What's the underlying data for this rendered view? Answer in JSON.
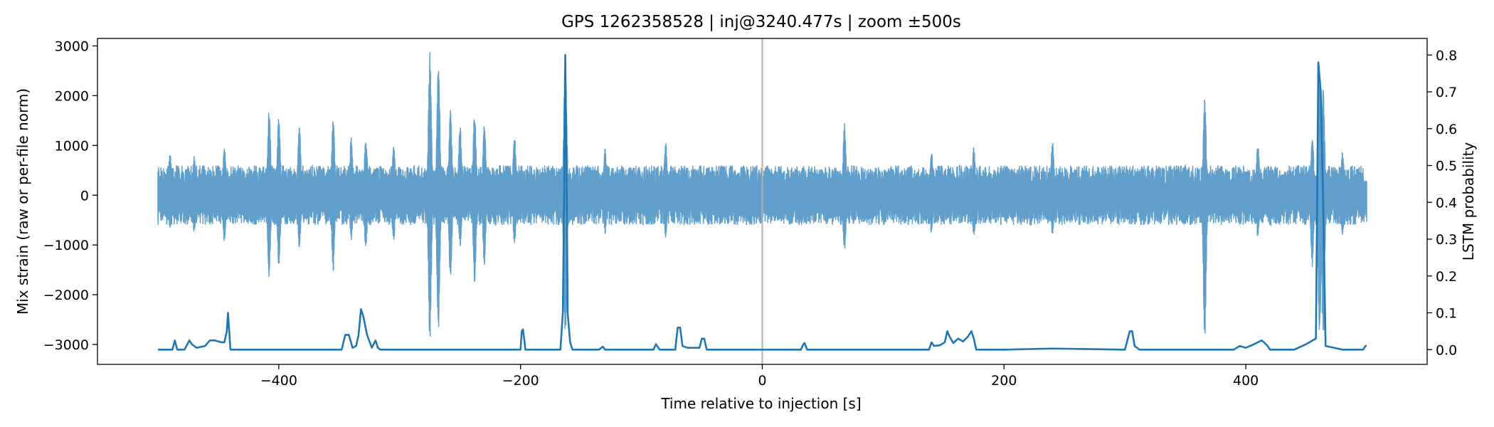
{
  "chart_data": {
    "type": "line",
    "title": "GPS 1262358528 | inj@3240.477s | zoom ±500s",
    "xlabel": "Time relative to injection [s]",
    "ylabel_left": "Mix strain (raw or per-file norm)",
    "ylabel_right": "LSTM probability",
    "xlim": [
      -550,
      550
    ],
    "ylim_left": [
      -3400,
      3150
    ],
    "ylim_right": [
      -0.04,
      0.845
    ],
    "x_ticks": [
      -400,
      -200,
      0,
      200,
      400
    ],
    "x_tick_labels": [
      "−400",
      "−200",
      "0",
      "200",
      "400"
    ],
    "y_left_ticks": [
      -3000,
      -2000,
      -1000,
      0,
      1000,
      2000,
      3000
    ],
    "y_left_tick_labels": [
      "−3000",
      "−2000",
      "−1000",
      "0",
      "1000",
      "2000",
      "3000"
    ],
    "y_right_ticks": [
      0.0,
      0.1,
      0.2,
      0.3,
      0.4,
      0.5,
      0.6,
      0.7,
      0.8
    ],
    "y_right_tick_labels": [
      "0.0",
      "0.1",
      "0.2",
      "0.3",
      "0.4",
      "0.5",
      "0.6",
      "0.7",
      "0.8"
    ],
    "grid": false,
    "injection_marker_x": 0,
    "colors": {
      "strain": "#4f93c7",
      "probability": "#1f77b4",
      "injection_line": "#b0b0b0"
    },
    "series": [
      {
        "axis": "left",
        "x_range": [
          -500,
          500
        ],
        "typical_envelope": [
          -600,
          600
        ],
        "bursts": [
          {
            "x": -490,
            "max": 850,
            "min": -700
          },
          {
            "x": -470,
            "max": 800,
            "min": -750
          },
          {
            "x": -445,
            "max": 1000,
            "min": -950
          },
          {
            "x": -408,
            "max": 1750,
            "min": -1650
          },
          {
            "x": -400,
            "max": 1580,
            "min": -1450
          },
          {
            "x": -383,
            "max": 1440,
            "min": -1100
          },
          {
            "x": -355,
            "max": 1580,
            "min": -1560
          },
          {
            "x": -340,
            "max": 1200,
            "min": -900
          },
          {
            "x": -328,
            "max": 1200,
            "min": -1100
          },
          {
            "x": -305,
            "max": 1050,
            "min": -950
          },
          {
            "x": -275,
            "max": 2880,
            "min": -3000
          },
          {
            "x": -268,
            "max": 2780,
            "min": -2850
          },
          {
            "x": -258,
            "max": 1800,
            "min": -1700
          },
          {
            "x": -250,
            "max": 1430,
            "min": -1050
          },
          {
            "x": -238,
            "max": 1700,
            "min": -1750
          },
          {
            "x": -230,
            "max": 1500,
            "min": -1400
          },
          {
            "x": -205,
            "max": 1250,
            "min": -1000
          },
          {
            "x": -163,
            "max": 2880,
            "min": -3000
          },
          {
            "x": -130,
            "max": 950,
            "min": -800
          },
          {
            "x": -80,
            "max": 1100,
            "min": -850
          },
          {
            "x": 68,
            "max": 1450,
            "min": -1150
          },
          {
            "x": 140,
            "max": 900,
            "min": -800
          },
          {
            "x": 175,
            "max": 1000,
            "min": -850
          },
          {
            "x": 240,
            "max": 1080,
            "min": -800
          },
          {
            "x": 366,
            "max": 2030,
            "min": -3000
          },
          {
            "x": 410,
            "max": 1060,
            "min": -850
          },
          {
            "x": 455,
            "max": 1200,
            "min": -1450
          },
          {
            "x": 461,
            "max": 2370,
            "min": -3000
          },
          {
            "x": 464,
            "max": 2150,
            "min": -2950
          },
          {
            "x": 480,
            "max": 900,
            "min": -850
          }
        ]
      },
      {
        "axis": "right",
        "x": [
          -500,
          -495,
          -488,
          -486,
          -484,
          -478,
          -474,
          -472,
          -468,
          -461,
          -457,
          -453,
          -450,
          -447,
          -445,
          -443,
          -442,
          -441,
          -440,
          -439,
          -437,
          -400,
          -348,
          -345,
          -342,
          -339,
          -336,
          -334,
          -332,
          -330,
          -327,
          -323,
          -320,
          -318,
          -316,
          -300,
          -200,
          -199,
          -198,
          -197,
          -196,
          -180,
          -167,
          -165,
          -164,
          -163,
          -162,
          -161,
          -159,
          -157,
          -135,
          -132,
          -130,
          -90,
          -88,
          -85,
          -72,
          -70,
          -68,
          -66,
          -62,
          -58,
          -52,
          -50,
          -48,
          -46,
          -30,
          32,
          34,
          35,
          37,
          138,
          140,
          142,
          147,
          151,
          153,
          155,
          158,
          162,
          166,
          170,
          173,
          175,
          177,
          200,
          240,
          300,
          304,
          306,
          308,
          312,
          330,
          390,
          395,
          400,
          405,
          410,
          413,
          415,
          418,
          420,
          440,
          450,
          458,
          460,
          462,
          464,
          466,
          480,
          497,
          499,
          500
        ],
        "y": [
          0.0,
          0.0,
          0.0,
          0.025,
          0.0,
          0.0,
          0.025,
          0.015,
          0.005,
          0.01,
          0.025,
          0.025,
          0.022,
          0.02,
          0.02,
          0.05,
          0.1,
          0.05,
          0.0,
          0.0,
          0.0,
          0.0,
          0.0,
          0.04,
          0.04,
          0.005,
          0.01,
          0.04,
          0.11,
          0.09,
          0.04,
          0.005,
          0.025,
          0.005,
          0.0,
          0.0,
          0.0,
          0.05,
          0.055,
          0.03,
          0.0,
          0.0,
          0.0,
          0.1,
          0.4,
          0.8,
          0.5,
          0.1,
          0.02,
          0.0,
          0.0,
          0.008,
          0.0,
          0.0,
          0.015,
          0.0,
          0.0,
          0.06,
          0.06,
          0.01,
          0.005,
          0.005,
          0.005,
          0.03,
          0.03,
          0.0,
          0.0,
          0.0,
          0.015,
          0.018,
          0.0,
          0.0,
          0.02,
          0.01,
          0.012,
          0.02,
          0.05,
          0.035,
          0.018,
          0.03,
          0.022,
          0.035,
          0.05,
          0.03,
          0.0,
          0.0,
          0.003,
          0.0,
          0.05,
          0.05,
          0.01,
          0.0,
          0.0,
          0.0,
          0.01,
          0.005,
          0.012,
          0.02,
          0.025,
          0.02,
          0.01,
          0.0,
          0.0,
          0.015,
          0.03,
          0.78,
          0.7,
          0.4,
          0.01,
          0.0,
          0.0,
          0.01,
          0.01
        ]
      }
    ]
  }
}
